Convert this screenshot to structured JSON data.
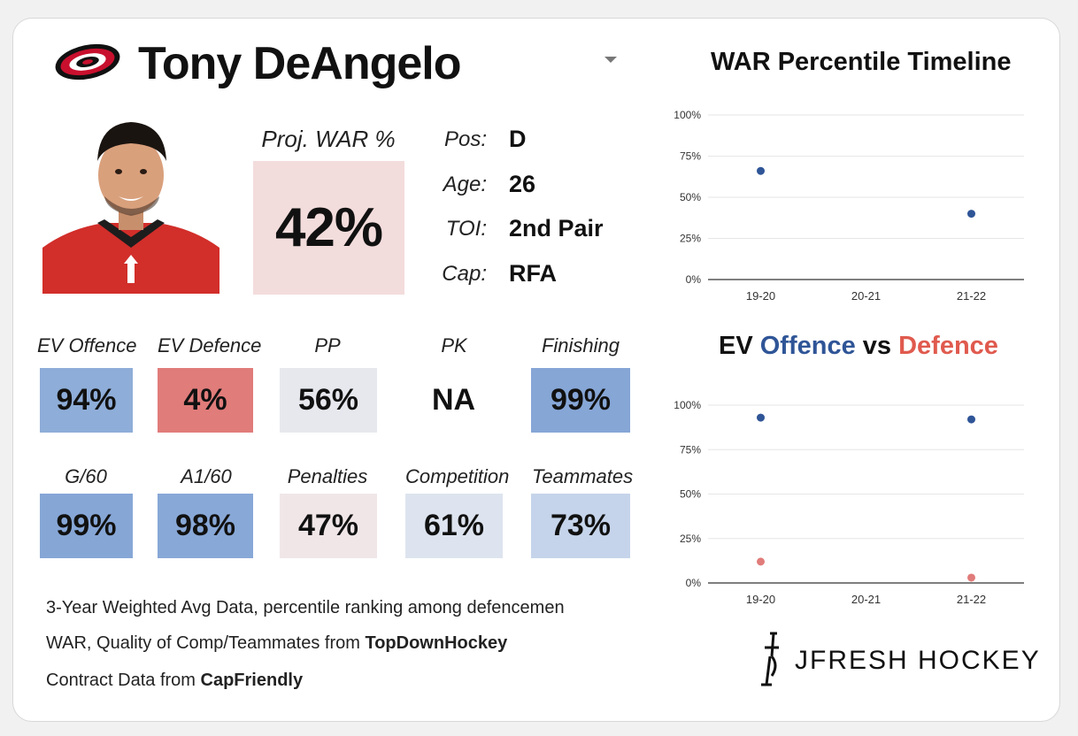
{
  "player": {
    "name": "Tony DeAngelo"
  },
  "projected_war": {
    "label": "Proj. WAR %",
    "value": "42%"
  },
  "info": [
    {
      "label": "Pos:",
      "value": "D"
    },
    {
      "label": "Age:",
      "value": "26"
    },
    {
      "label": "TOI:",
      "value": "2nd Pair"
    },
    {
      "label": "Cap:",
      "value": "RFA"
    }
  ],
  "stats_row1": [
    {
      "label": "EV Offence",
      "value": "94%",
      "color": "#8eadd8"
    },
    {
      "label": "EV Defence",
      "value": "4%",
      "color": "#e07c7a"
    },
    {
      "label": "PP",
      "value": "56%",
      "color": "#e6e8ee"
    },
    {
      "label": "PK",
      "value": "NA",
      "color": "#ffffff"
    },
    {
      "label": "Finishing",
      "value": "99%",
      "color": "#86a6d6"
    }
  ],
  "stats_row2": [
    {
      "label": "G/60",
      "value": "99%",
      "color": "#86a6d6"
    },
    {
      "label": "A1/60",
      "value": "98%",
      "color": "#88a8d7"
    },
    {
      "label": "Penalties",
      "value": "47%",
      "color": "#f0e6e8"
    },
    {
      "label": "Competition",
      "value": "61%",
      "color": "#dde4ef"
    },
    {
      "label": "Teammates",
      "value": "73%",
      "color": "#c5d4ea"
    }
  ],
  "footnotes": {
    "line1": "3-Year Weighted Avg Data, percentile ranking among defencemen",
    "line2_prefix": "WAR, Quality of Comp/Teammates from ",
    "line2_source": "TopDownHockey",
    "line3_prefix": "Contract Data from ",
    "line3_source": "CapFriendly"
  },
  "brand": {
    "text": "JFRESH HOCKEY"
  },
  "colors": {
    "offence": "#2f5597",
    "defence": "#e05a4e"
  },
  "chart_data": [
    {
      "type": "scatter",
      "title": "WAR Percentile Timeline",
      "categories": [
        "19-20",
        "20-21",
        "21-22"
      ],
      "series": [
        {
          "values": [
            66,
            null,
            40
          ],
          "color": "#2f5597"
        }
      ],
      "yticks": [
        "0%",
        "25%",
        "50%",
        "75%",
        "100%"
      ],
      "ylim": [
        0,
        100
      ]
    },
    {
      "type": "scatter",
      "title_parts": [
        "EV ",
        "Offence",
        " vs ",
        "Defence"
      ],
      "categories": [
        "19-20",
        "20-21",
        "21-22"
      ],
      "series": [
        {
          "name": "Offence",
          "values": [
            93,
            null,
            92
          ],
          "color": "#2f5597"
        },
        {
          "name": "Defence",
          "values": [
            12,
            null,
            3
          ],
          "color": "#e07c7a"
        }
      ],
      "yticks": [
        "0%",
        "25%",
        "50%",
        "75%",
        "100%"
      ],
      "ylim": [
        0,
        100
      ]
    }
  ]
}
